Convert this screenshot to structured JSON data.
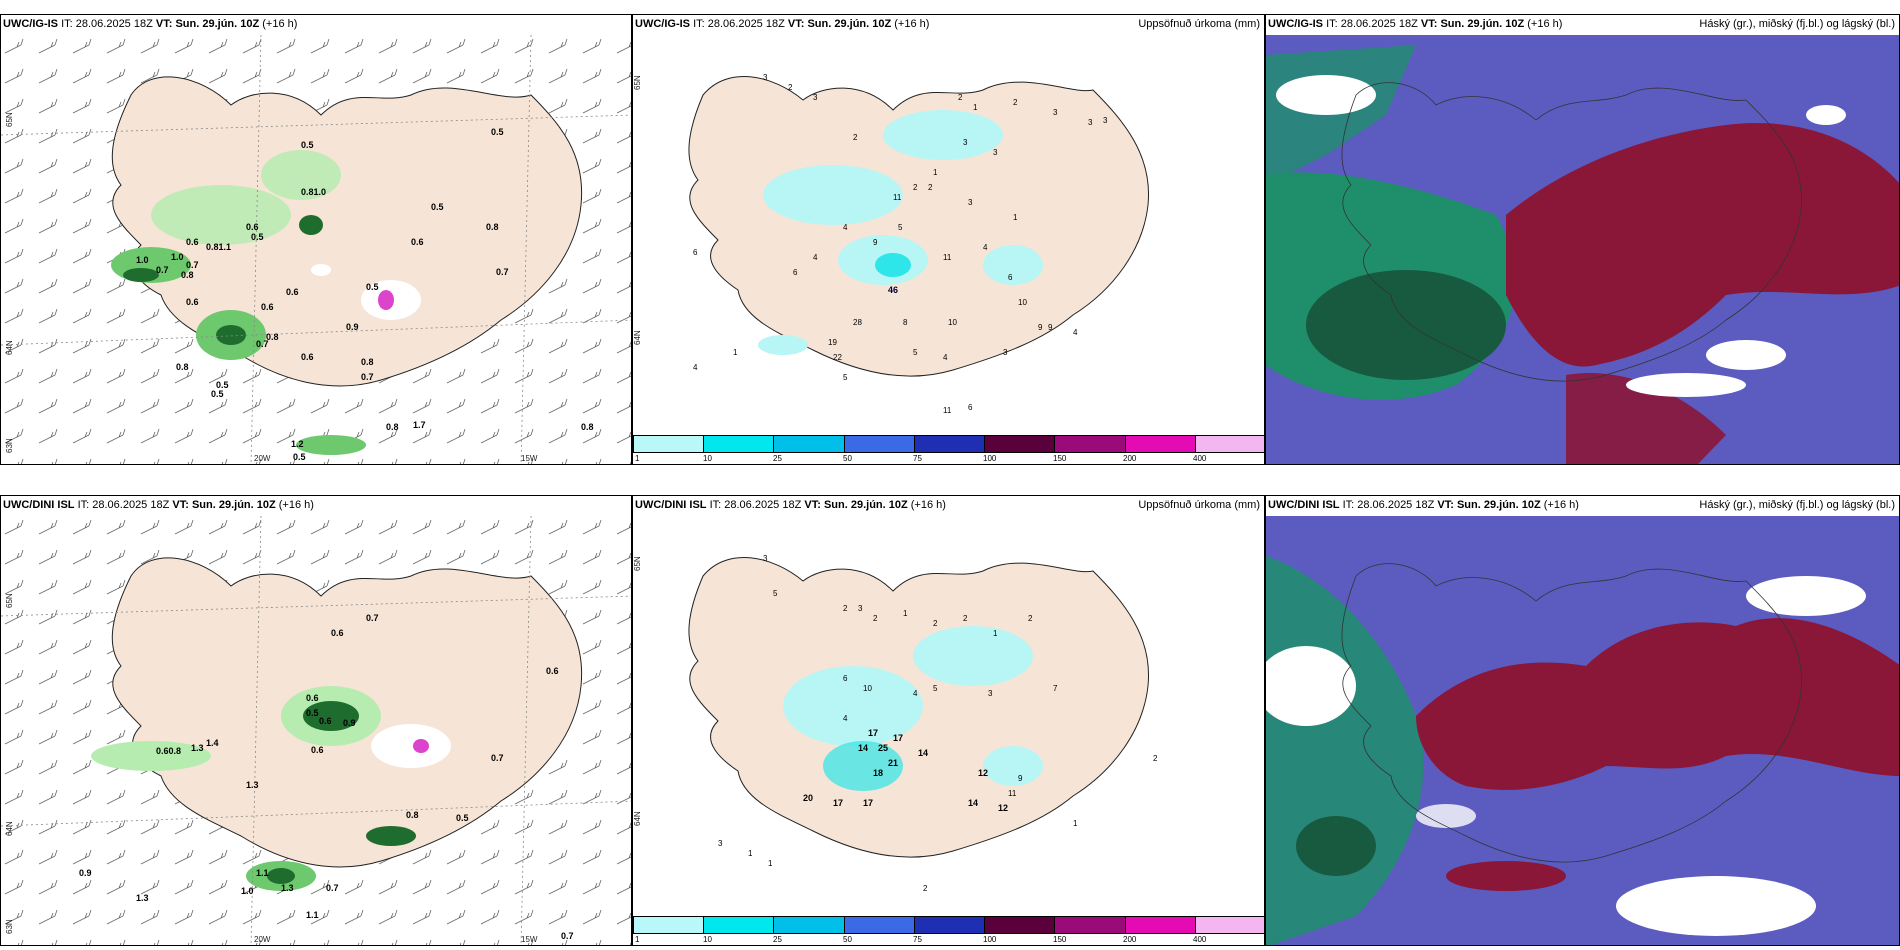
{
  "colors": {
    "land": "#f6e5d6",
    "sea": "#ffffff",
    "green_light": "#b6ecb0",
    "green_mid": "#6ec86e",
    "green_dark": "#1f6d2e",
    "precip_light": "#b8f5f5",
    "precip_mid": "#2ee6ea",
    "cloud_blue": "#5b5bc0",
    "cloud_maroon": "#8a1638",
    "cloud_teal": "#1f8f6b"
  },
  "panels": [
    {
      "model": "UWC/IG-IS",
      "it_label": "IT:",
      "it_value": "28.06.2025 18Z",
      "vt_label": "VT:",
      "vt_value": "Sun. 29.jún. 10Z",
      "lead": "(+16 h)",
      "title_right": "",
      "lat_labels": [
        "65N",
        "64N",
        "63N"
      ],
      "lon_labels": [
        "20W",
        "15W"
      ],
      "values": [
        "0.5",
        "0.5",
        "0.81.0",
        "0.5",
        "0.8",
        "0.6",
        "0.5",
        "0.6",
        "0.81.1",
        "0.6",
        "1.0",
        "0.7",
        "0.8",
        "0.7",
        "0.6",
        "0.6",
        "0.6",
        "0.8",
        "0.7",
        "0.9",
        "0.6",
        "0.8",
        "0.5",
        "0.5",
        "0.5",
        "1.0",
        "0.7",
        "0.8",
        "1.2",
        "0.5",
        "0.8",
        "1.7",
        "0.8",
        "0.7"
      ]
    },
    {
      "model": "UWC/IG-IS",
      "it_label": "IT:",
      "it_value": "28.06.2025 18Z",
      "vt_label": "VT:",
      "vt_value": "Sun. 29.jún. 10Z",
      "lead": "(+16 h)",
      "title_right": "Uppsöfnuð úrkoma (mm)",
      "lat_labels": [
        "65N",
        "64N"
      ],
      "colorbar_ticks": [
        "1",
        "10",
        "25",
        "50",
        "75",
        "100",
        "150",
        "200",
        "400"
      ],
      "colorbar_colors": [
        "#b8f8f8",
        "#00e8ee",
        "#00c0ea",
        "#3a6ae6",
        "#1e2fb4",
        "#5a003a",
        "#9a0a78",
        "#e40ab4",
        "#f4b6f0"
      ],
      "values": [
        "3",
        "2",
        "3",
        "2",
        "1",
        "2",
        "3",
        "3",
        "3",
        "2",
        "3",
        "3",
        "1",
        "11",
        "2",
        "2",
        "3",
        "4",
        "5",
        "1",
        "6",
        "4",
        "9",
        "11",
        "4",
        "6",
        "46",
        "6",
        "28",
        "8",
        "10",
        "10",
        "19",
        "22",
        "5",
        "4",
        "3",
        "5",
        "9",
        "9",
        "4",
        "1",
        "11",
        "6",
        "4"
      ]
    },
    {
      "model": "UWC/IG-IS",
      "it_label": "IT:",
      "it_value": "28.06.2025 18Z",
      "vt_label": "VT:",
      "vt_value": "Sun. 29.jún. 10Z",
      "lead": "(+16 h)",
      "title_right": "Háský (gr.), miðský (fj.bl.) og lágský (bl.)"
    },
    {
      "model": "UWC/DINI ISL",
      "it_label": "IT:",
      "it_value": "28.06.2025 18Z",
      "vt_label": "VT:",
      "vt_value": "Sun. 29.jún. 10Z",
      "lead": "(+16 h)",
      "title_right": "",
      "lat_labels": [
        "65N",
        "64N",
        "63N"
      ],
      "lon_labels": [
        "20W",
        "15W"
      ],
      "values": [
        "0.7",
        "0.6",
        "0.6",
        "0.6",
        "0.5",
        "0.6",
        "0.9",
        "0.60.8",
        "1.3",
        "1.4",
        "0.6",
        "0.7",
        "1.3",
        "0.8",
        "0.5",
        "0.9",
        "1.1",
        "1.0",
        "1.3",
        "0.7",
        "1.3",
        "1.1",
        "0.7"
      ]
    },
    {
      "model": "UWC/DINI ISL",
      "it_label": "IT:",
      "it_value": "28.06.2025 18Z",
      "vt_label": "VT:",
      "vt_value": "Sun. 29.jún. 10Z",
      "lead": "(+16 h)",
      "title_right": "Uppsöfnuð úrkoma (mm)",
      "lat_labels": [
        "65N",
        "64N"
      ],
      "colorbar_ticks": [
        "1",
        "10",
        "25",
        "50",
        "75",
        "100",
        "150",
        "200",
        "400"
      ],
      "colorbar_colors": [
        "#b8f8f8",
        "#00e8ee",
        "#00c0ea",
        "#3a6ae6",
        "#1e2fb4",
        "#5a003a",
        "#9a0a78",
        "#e40ab4",
        "#f4b6f0"
      ],
      "values": [
        "3",
        "5",
        "2",
        "3",
        "2",
        "1",
        "2",
        "2",
        "1",
        "2",
        "6",
        "10",
        "4",
        "5",
        "3",
        "7",
        "4",
        "17",
        "17",
        "14",
        "25",
        "21",
        "14",
        "18",
        "20",
        "17",
        "17",
        "14",
        "12",
        "12",
        "9",
        "11",
        "1",
        "2",
        "3",
        "1",
        "1",
        "2"
      ]
    },
    {
      "model": "UWC/DINI ISL",
      "it_label": "IT:",
      "it_value": "28.06.2025 18Z",
      "vt_label": "VT:",
      "vt_value": "Sun. 29.jún. 10Z",
      "lead": "(+16 h)",
      "title_right": "Háský (gr.), miðský (fj.bl.) og lágský (bl.)"
    }
  ]
}
